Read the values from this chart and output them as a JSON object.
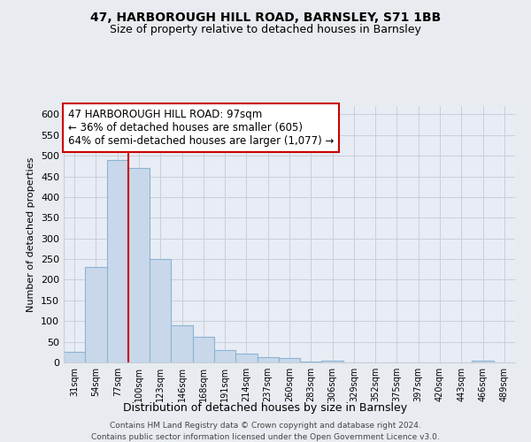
{
  "title1": "47, HARBOROUGH HILL ROAD, BARNSLEY, S71 1BB",
  "title2": "Size of property relative to detached houses in Barnsley",
  "xlabel": "Distribution of detached houses by size in Barnsley",
  "ylabel": "Number of detached properties",
  "bin_labels": [
    "31sqm",
    "54sqm",
    "77sqm",
    "100sqm",
    "123sqm",
    "146sqm",
    "168sqm",
    "191sqm",
    "214sqm",
    "237sqm",
    "260sqm",
    "283sqm",
    "306sqm",
    "329sqm",
    "352sqm",
    "375sqm",
    "397sqm",
    "420sqm",
    "443sqm",
    "466sqm",
    "489sqm"
  ],
  "bar_heights": [
    25,
    230,
    490,
    470,
    250,
    90,
    63,
    30,
    22,
    13,
    10,
    2,
    4,
    1,
    1,
    0,
    0,
    0,
    0,
    5,
    0
  ],
  "bar_color": "#c8d8ea",
  "bar_edgecolor": "#8ab4d4",
  "vline_x": 3,
  "vline_color": "#cc0000",
  "annotation_line1": "47 HARBOROUGH HILL ROAD: 97sqm",
  "annotation_line2": "← 36% of detached houses are smaller (605)",
  "annotation_line3": "64% of semi-detached houses are larger (1,077) →",
  "annotation_box_edgecolor": "#cc0000",
  "ylim": [
    0,
    620
  ],
  "yticks": [
    0,
    50,
    100,
    150,
    200,
    250,
    300,
    350,
    400,
    450,
    500,
    550,
    600
  ],
  "footer1": "Contains HM Land Registry data © Crown copyright and database right 2024.",
  "footer2": "Contains public sector information licensed under the Open Government Licence v3.0.",
  "bg_color": "#e8ecf0",
  "plot_bg_color": "#e8ecf4",
  "grid_color": "#c8d0da"
}
